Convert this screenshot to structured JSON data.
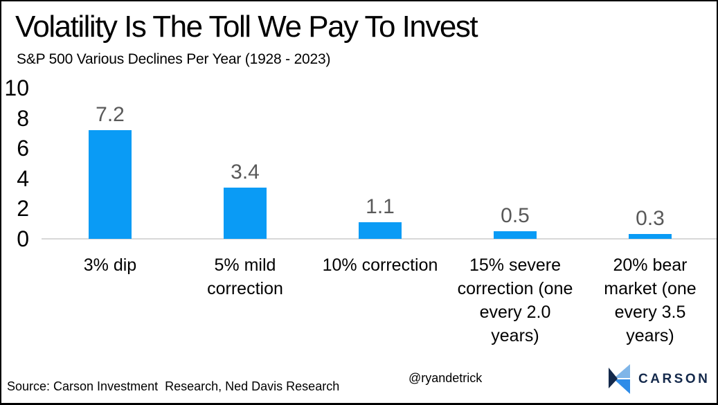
{
  "page": {
    "title": "Volatility Is The Toll We Pay To Invest",
    "subtitle": "S&P 500 Various Declines Per Year (1928 - 2023)"
  },
  "chart_data": {
    "type": "bar",
    "title": "Volatility Is The Toll We Pay To Invest",
    "subtitle": "S&P 500 Various Declines Per Year (1928 - 2023)",
    "categories": [
      "3% dip",
      "5% mild correction",
      "10% correction",
      "15% severe correction (one every 2.0 years)",
      "20% bear market (one every 3.5 years)"
    ],
    "categories_display": [
      "3% dip",
      "5% mild\ncorrection",
      "10% correction",
      "15% severe\ncorrection (one\nevery 2.0\nyears)",
      "20% bear\nmarket (one\nevery 3.5\nyears)"
    ],
    "values": [
      7.2,
      3.4,
      1.1,
      0.5,
      0.3
    ],
    "data_labels": [
      "7.2",
      "3.4",
      "1.1",
      "0.5",
      "0.3"
    ],
    "xlabel": "",
    "ylabel": "",
    "ylim": [
      0,
      10
    ],
    "yticks": [
      0,
      2,
      4,
      6,
      8,
      10
    ],
    "grid": false,
    "legend": null,
    "bar_color": "#0A9BF5",
    "data_label_color": "#595959",
    "axis_line_color": "#D8D8D8",
    "tick_label_color": "#000000"
  },
  "footer": {
    "source": "Source: Carson Investment  Research, Ned Davis Research",
    "handle": "@ryandetrick",
    "logo": {
      "text": "CARSON",
      "navy": "#14294B",
      "light_blue": "#7FB5E8",
      "mid_blue": "#2F8CE8"
    }
  }
}
